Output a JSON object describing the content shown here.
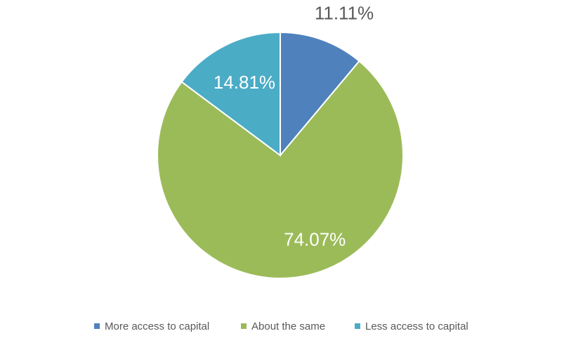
{
  "chart_data": {
    "type": "pie",
    "categories": [
      "More access to capital",
      "About the same",
      "Less access to capital"
    ],
    "values": [
      11.11,
      74.07,
      14.81
    ],
    "value_labels": [
      "11.11%",
      "74.07%",
      "14.81%"
    ],
    "colors": [
      "#4f81bd",
      "#9bbb59",
      "#4bacc6"
    ],
    "legend": "bottom"
  }
}
